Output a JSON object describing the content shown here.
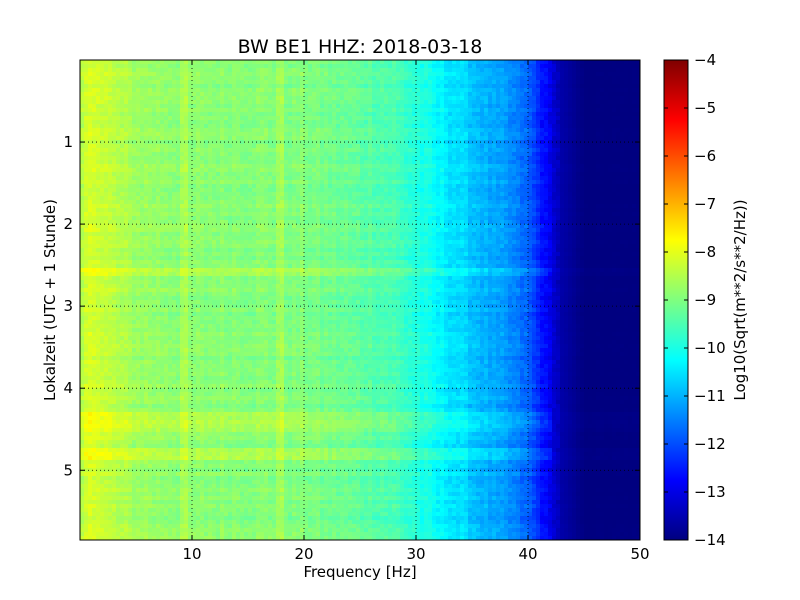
{
  "chart_data": {
    "type": "heatmap",
    "title": "BW BE1 HHZ: 2018-03-18",
    "xlabel": "Frequency [Hz]",
    "ylabel": "Lokalzeit (UTC + 1 Stunde)",
    "colorbar_label": "Log10(Sqrt(m**2/s**2/Hz))",
    "xlim": [
      0,
      50
    ],
    "ylim": [
      5.85,
      0
    ],
    "x_ticks": [
      10,
      20,
      30,
      40,
      50
    ],
    "y_ticks": [
      1,
      2,
      3,
      4,
      5
    ],
    "colorbar_range": [
      -14,
      -4
    ],
    "colorbar_ticks": [
      -4,
      -5,
      -6,
      -7,
      -8,
      -9,
      -10,
      -11,
      -12,
      -13,
      -14
    ],
    "colormap": "jet",
    "grid": true,
    "spectral_profile": {
      "frequency_hz": [
        0,
        1,
        2,
        5,
        10,
        15,
        20,
        25,
        28,
        30,
        32,
        34,
        36,
        38,
        40,
        41,
        42,
        43,
        45,
        50
      ],
      "log10_amplitude": [
        -8.6,
        -8.0,
        -8.3,
        -8.7,
        -8.9,
        -8.9,
        -9.0,
        -9.3,
        -9.5,
        -9.9,
        -10.3,
        -10.6,
        -11.0,
        -11.3,
        -11.8,
        -12.4,
        -13.0,
        -13.6,
        -14.0,
        -14.0
      ]
    }
  }
}
